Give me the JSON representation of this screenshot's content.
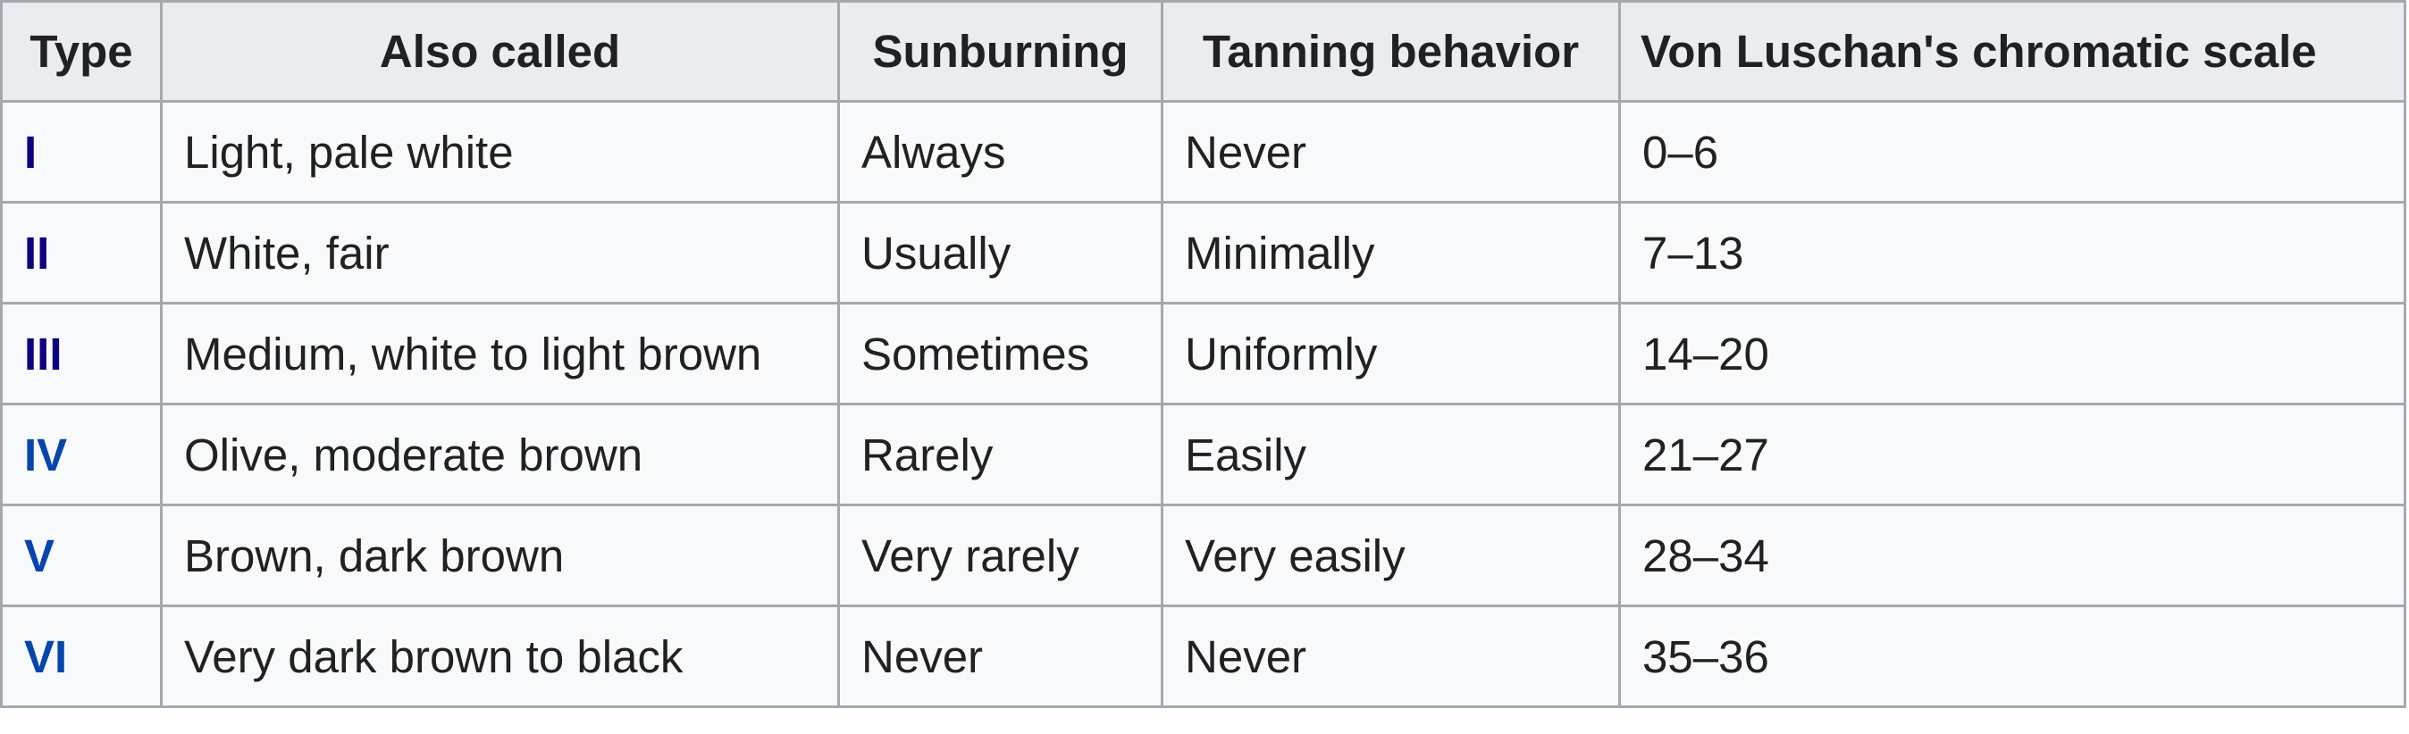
{
  "table": {
    "headers": [
      "Type",
      "Also called",
      "Sunburning",
      "Tanning behavior",
      "Von Luschan's chromatic scale"
    ],
    "rows": [
      {
        "type": "I",
        "type_color": "#0b0080",
        "also_called": "Light, pale white",
        "sunburning": "Always",
        "tanning": "Never",
        "von_luschan": "0–6"
      },
      {
        "type": "II",
        "type_color": "#0b0080",
        "also_called": "White, fair",
        "sunburning": "Usually",
        "tanning": "Minimally",
        "von_luschan": "7–13"
      },
      {
        "type": "III",
        "type_color": "#0b0080",
        "also_called": "Medium, white to light brown",
        "sunburning": "Sometimes",
        "tanning": "Uniformly",
        "von_luschan": "14–20"
      },
      {
        "type": "IV",
        "type_color": "#0645ad",
        "also_called": "Olive, moderate brown",
        "sunburning": "Rarely",
        "tanning": "Easily",
        "von_luschan": "21–27"
      },
      {
        "type": "V",
        "type_color": "#0645ad",
        "also_called": "Brown, dark brown",
        "sunburning": "Very rarely",
        "tanning": "Very easily",
        "von_luschan": "28–34"
      },
      {
        "type": "VI",
        "type_color": "#0645ad",
        "also_called": "Very dark brown to black",
        "sunburning": "Never",
        "tanning": "Never",
        "von_luschan": "35–36"
      }
    ]
  },
  "colors": {
    "visited_link": "#0b0080",
    "link": "#0645ad",
    "header_bg": "#eaecf0",
    "cell_bg": "#f8f9fa",
    "border": "#a2a9b1",
    "text": "#202122"
  }
}
